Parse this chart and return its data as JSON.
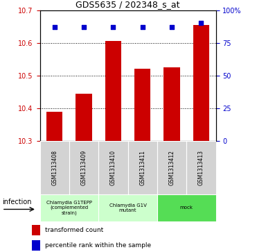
{
  "title": "GDS5635 / 202348_s_at",
  "samples": [
    "GSM1313408",
    "GSM1313409",
    "GSM1313410",
    "GSM1313411",
    "GSM1313412",
    "GSM1313413"
  ],
  "bar_values": [
    10.39,
    10.445,
    10.605,
    10.52,
    10.525,
    10.655
  ],
  "percentile_values": [
    87,
    87,
    87,
    87,
    87,
    90
  ],
  "bar_color": "#cc0000",
  "dot_color": "#0000cc",
  "ylim_left": [
    10.3,
    10.7
  ],
  "ylim_right": [
    0,
    100
  ],
  "yticks_left": [
    10.3,
    10.4,
    10.5,
    10.6,
    10.7
  ],
  "yticks_right": [
    0,
    25,
    50,
    75,
    100
  ],
  "group_boundaries": [
    {
      "start": 0,
      "end": 1,
      "label": "Chlamydia G1TEPP\n(complemented\nstrain)",
      "color": "#ccffcc"
    },
    {
      "start": 2,
      "end": 3,
      "label": "Chlamydia G1V\nmutant",
      "color": "#ccffcc"
    },
    {
      "start": 4,
      "end": 5,
      "label": "mock",
      "color": "#55dd55"
    }
  ],
  "factor_label": "infection",
  "legend_bar_label": "transformed count",
  "legend_dot_label": "percentile rank within the sample",
  "background_color": "#ffffff",
  "tick_color_left": "#cc0000",
  "tick_color_right": "#0000cc",
  "sample_box_color": "#d3d3d3",
  "bar_width": 0.55
}
